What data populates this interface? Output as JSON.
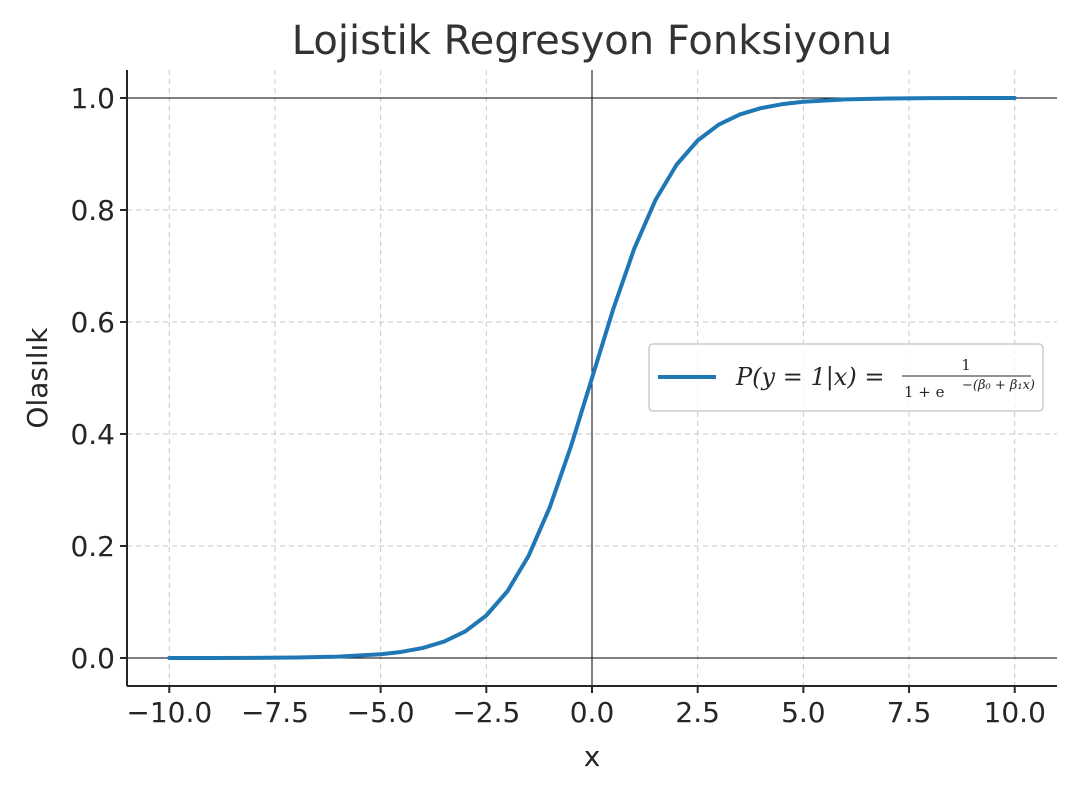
{
  "chart_data": {
    "type": "line",
    "title": "Lojistik Regresyon Fonksiyonu",
    "xlabel": "x",
    "ylabel": "Olasılık",
    "xlim": [
      -11,
      11
    ],
    "ylim": [
      -0.05,
      1.05
    ],
    "x_ticks": [
      "−10.0",
      "−7.5",
      "−5.0",
      "−2.5",
      "0.0",
      "2.5",
      "5.0",
      "7.5",
      "10.0"
    ],
    "y_ticks": [
      "0.0",
      "0.2",
      "0.4",
      "0.6",
      "0.8",
      "1.0"
    ],
    "x_tick_values": [
      -10,
      -7.5,
      -5,
      -2.5,
      0,
      2.5,
      5,
      7.5,
      10
    ],
    "y_tick_values": [
      0,
      0.2,
      0.4,
      0.6,
      0.8,
      1.0
    ],
    "grid": true,
    "legend_position": "center-right",
    "reference_lines": {
      "horizontal": [
        0,
        1
      ],
      "vertical": [
        0
      ]
    },
    "series": [
      {
        "name": "P(y = 1|x) = 1 / (1 + e^−(β0 + β1x))",
        "color": "#1f77b4",
        "x": [
          -10,
          -9,
          -8,
          -7,
          -6,
          -5,
          -4.5,
          -4,
          -3.5,
          -3,
          -2.5,
          -2,
          -1.5,
          -1,
          -0.5,
          0,
          0.5,
          1,
          1.5,
          2,
          2.5,
          3,
          3.5,
          4,
          4.5,
          5,
          6,
          7,
          8,
          9,
          10
        ],
        "y": [
          0.0,
          0.0001,
          0.0003,
          0.0009,
          0.0025,
          0.0067,
          0.011,
          0.018,
          0.0293,
          0.0474,
          0.0759,
          0.1192,
          0.1824,
          0.2689,
          0.3775,
          0.5,
          0.6225,
          0.7311,
          0.8176,
          0.8808,
          0.9241,
          0.9526,
          0.9707,
          0.982,
          0.989,
          0.9933,
          0.9975,
          0.9991,
          0.9997,
          0.9999,
          1.0
        ]
      }
    ]
  },
  "legend": {
    "lhs": "P(y = 1|x) =",
    "numerator": "1",
    "den_1": "1 + e",
    "den_exp": "−(β₀ + β₁x)"
  }
}
